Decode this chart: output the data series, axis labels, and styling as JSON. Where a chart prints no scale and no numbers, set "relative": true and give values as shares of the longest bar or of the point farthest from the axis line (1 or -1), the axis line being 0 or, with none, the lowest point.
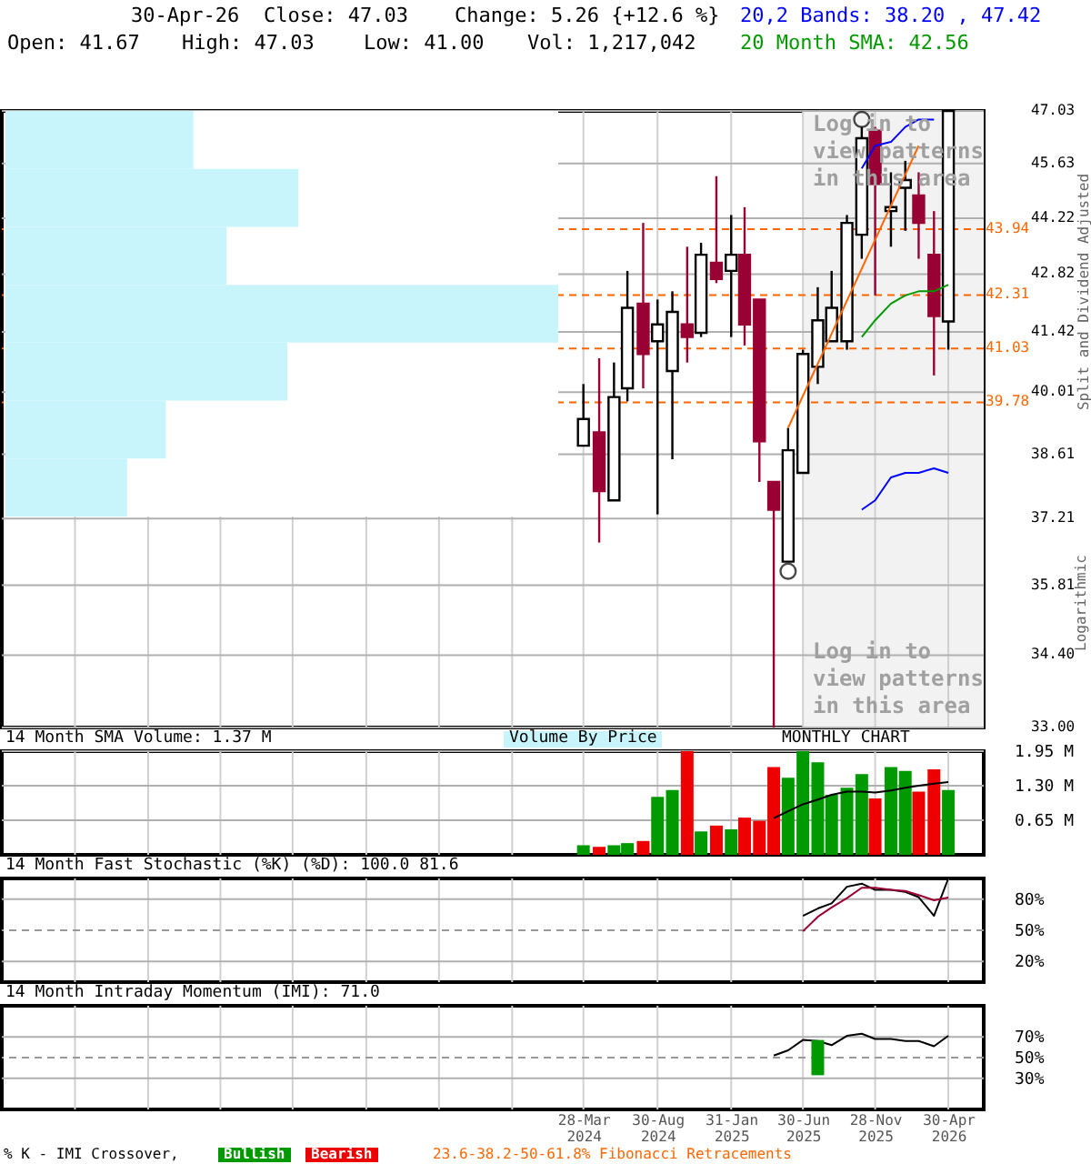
{
  "chart_data": [
    {
      "type": "candlestick",
      "annotations": [
        "30-Apr-26",
        "Close: 47.03",
        "Change: 5.26 {+12.6 %}",
        "Open: 41.67",
        "High: 47.03",
        "Low: 41.00",
        "Vol: 1,217,042",
        "20,2 Bands: 38.20 , 47.42",
        "20 Month SMA: 42.56",
        "Log in to\nview patterns\nin this area",
        "Log in to\nview patterns\nin this area",
        "Logarithmic"
      ],
      "ylabel": "Split and Dividend Adjusted",
      "x": [
        "2024-03-28",
        "2024-04-30",
        "2024-05-31",
        "2024-06-28",
        "2024-07-31",
        "2024-08-30",
        "2024-09-30",
        "2024-10-31",
        "2024-11-29",
        "2024-12-31",
        "2025-01-31",
        "2025-02-28",
        "2025-03-31",
        "2025-04-30",
        "2025-05-30",
        "2025-06-30",
        "2025-07-31",
        "2025-08-29",
        "2025-09-30",
        "2025-10-31",
        "2025-11-28",
        "2025-12-31",
        "2026-01-30",
        "2026-02-27",
        "2026-03-31",
        "2026-04-30"
      ],
      "ohlc": [
        [
          38.8,
          40.2,
          38.8,
          39.4
        ],
        [
          39.1,
          40.8,
          36.7,
          37.8
        ],
        [
          37.6,
          40.7,
          37.6,
          39.9
        ],
        [
          40.1,
          42.9,
          39.8,
          42.0
        ],
        [
          42.1,
          44.1,
          40.1,
          40.9
        ],
        [
          41.2,
          42.2,
          37.3,
          41.6
        ],
        [
          40.5,
          42.4,
          38.5,
          41.9
        ],
        [
          41.6,
          43.5,
          40.7,
          41.3
        ],
        [
          41.4,
          43.6,
          41.3,
          43.3
        ],
        [
          43.1,
          45.3,
          42.6,
          42.7
        ],
        [
          42.9,
          44.3,
          41.3,
          43.3
        ],
        [
          43.3,
          44.5,
          41.1,
          41.6
        ],
        [
          42.2,
          42.2,
          38.0,
          38.9
        ],
        [
          38.0,
          38.0,
          33.0,
          37.4
        ],
        [
          36.3,
          39.2,
          36.3,
          38.7
        ],
        [
          38.2,
          41.0,
          38.2,
          40.9
        ],
        [
          40.6,
          42.5,
          40.2,
          41.7
        ],
        [
          41.2,
          42.9,
          41.2,
          42.0
        ],
        [
          41.2,
          44.3,
          41.0,
          44.1
        ],
        [
          43.8,
          46.6,
          43.2,
          46.3
        ],
        [
          46.5,
          46.6,
          42.3,
          45.1
        ],
        [
          44.4,
          45.4,
          43.5,
          44.5
        ],
        [
          45.0,
          45.7,
          43.9,
          45.2
        ],
        [
          44.8,
          45.4,
          43.2,
          44.1
        ],
        [
          43.3,
          44.4,
          40.4,
          41.8
        ],
        [
          41.67,
          47.03,
          41.0,
          47.03
        ]
      ],
      "series": [
        {
          "type": "line",
          "color": "#0000ff",
          "x": [
            "2025-10-31",
            "2025-11-28",
            "2025-12-31",
            "2026-01-30",
            "2026-02-27",
            "2026-03-31"
          ],
          "values": [
            45.5,
            46.1,
            46.2,
            46.6,
            46.8,
            46.8
          ]
        },
        {
          "type": "line",
          "color": "#0000ff",
          "x": [
            "2025-10-31",
            "2025-11-28",
            "2025-12-31",
            "2026-01-30",
            "2026-02-27",
            "2026-03-31",
            "2026-04-30"
          ],
          "values": [
            37.4,
            37.6,
            38.1,
            38.2,
            38.2,
            38.3,
            38.2
          ]
        },
        {
          "type": "line",
          "color": "#009900",
          "x": [
            "2025-10-31",
            "2025-11-28",
            "2025-12-31",
            "2026-01-30",
            "2026-02-27",
            "2026-03-31",
            "2026-04-30"
          ],
          "values": [
            41.3,
            41.7,
            42.1,
            42.3,
            42.4,
            42.4,
            42.56
          ]
        },
        {
          "type": "line",
          "color": "#ff6600",
          "x": [
            "2025-05-30",
            "2026-02-27"
          ],
          "values": [
            39.2,
            46.1
          ]
        },
        {
          "type": "scatter",
          "color": "#000000",
          "marker": "circle",
          "x": [
            "2025-05-30",
            "2025-10-31"
          ],
          "values": [
            36.1,
            46.8
          ]
        }
      ],
      "xlim": [
        "2020-11-28",
        "2026-07-13"
      ],
      "xticks": [
        {
          "value": "2021-04-30",
          "label": null
        },
        {
          "value": "2021-09-30",
          "label": null
        },
        {
          "value": "2022-02-28",
          "label": null
        },
        {
          "value": "2022-07-29",
          "label": null
        },
        {
          "value": "2022-12-30",
          "label": null
        },
        {
          "value": "2023-05-31",
          "label": null
        },
        {
          "value": "2023-10-31",
          "label": null
        },
        {
          "value": "2024-03-28",
          "label": null
        },
        {
          "value": "2024-08-30",
          "label": null
        },
        {
          "value": "2025-01-31",
          "label": null
        },
        {
          "value": "2025-06-30",
          "label": null
        },
        {
          "value": "2025-11-28",
          "label": null
        },
        {
          "value": "2026-04-30",
          "label": null
        }
      ],
      "ylim": [
        33,
        47.03
      ],
      "yticks": [
        {
          "value": 33,
          "label": "33.00"
        },
        {
          "value": 34.4,
          "label": "34.40"
        },
        35.81,
        37.21,
        38.61,
        40.01,
        41.42,
        42.82,
        44.22,
        45.63,
        47.03
      ],
      "log": true,
      "grid": true,
      "tick_labels": "y",
      "ref_lines": [
        {
          "axis": "y",
          "value": 43.94,
          "label": "43.94",
          "color": "#ff6600",
          "line_style": "dashed"
        },
        {
          "axis": "y",
          "value": 42.31,
          "label": "42.31",
          "color": "#ff6600",
          "line_style": "dashed"
        },
        {
          "axis": "y",
          "value": 41.03,
          "label": "41.03",
          "color": "#ff6600",
          "line_style": "dashed"
        },
        {
          "axis": "y",
          "value": 39.78,
          "label": "39.78",
          "color": "#ff6600",
          "line_style": "dashed"
        }
      ],
      "bands": [
        {
          "axis": "x",
          "from": "2025-06-30",
          "to": "2026-07-13",
          "color": "#f2f2f2"
        }
      ]
    },
    {
      "type": "bar",
      "title": "Volume By Price",
      "orientation": "horizontal",
      "relative": true,
      "categories": [
        null,
        null,
        null,
        null,
        null,
        null,
        null
      ],
      "values": [
        0.34,
        0.53,
        0.4,
        1,
        0.51,
        0.29,
        0.22
      ],
      "color": "#c8f5fc"
    },
    {
      "type": "bar",
      "title": "14 Month SMA Volume: 1.37 M",
      "annotations": [
        "MONTHLY CHART"
      ],
      "x": [
        "2024-03-28",
        "2024-04-30",
        "2024-05-31",
        "2024-06-28",
        "2024-07-31",
        "2024-08-30",
        "2024-09-30",
        "2024-10-31",
        "2024-11-29",
        "2024-12-31",
        "2025-01-31",
        "2025-02-28",
        "2025-03-31",
        "2025-04-30",
        "2025-05-30",
        "2025-06-30",
        "2025-07-31",
        "2025-08-29",
        "2025-09-30",
        "2025-10-31",
        "2025-11-28",
        "2025-12-31",
        "2026-01-30",
        "2026-02-27",
        "2026-03-31",
        "2026-04-30"
      ],
      "series": [
        {
          "type": "bar",
          "values": [
            0.18,
            0.15,
            0.18,
            0.22,
            0.26,
            1.09,
            1.22,
            1.95,
            0.44,
            0.55,
            0.48,
            0.7,
            0.64,
            1.65,
            1.45,
            1.95,
            1.74,
            1.13,
            1.26,
            1.52,
            1.06,
            1.65,
            1.58,
            1.19,
            1.61,
            1.22
          ],
          "colors": [
            "#009900",
            "#ee0000",
            "#009900",
            "#009900",
            "#ee0000",
            "#009900",
            "#009900",
            "#ee0000",
            "#009900",
            "#ee0000",
            "#009900",
            "#ee0000",
            "#ee0000",
            "#ee0000",
            "#009900",
            "#009900",
            "#009900",
            "#009900",
            "#009900",
            "#009900",
            "#ee0000",
            "#009900",
            "#009900",
            "#ee0000",
            "#ee0000",
            "#009900"
          ]
        },
        {
          "type": "line",
          "color": "#000000",
          "x": [
            "2025-04-30",
            "2025-05-30",
            "2025-06-30",
            "2025-07-31",
            "2025-08-29",
            "2025-09-30",
            "2025-10-31",
            "2025-11-28",
            "2025-12-31",
            "2026-01-30",
            "2026-02-27",
            "2026-03-31",
            "2026-04-30"
          ],
          "values": [
            0.69,
            0.82,
            0.95,
            1.04,
            1.13,
            1.19,
            1.19,
            1.17,
            1.21,
            1.26,
            1.3,
            1.34,
            1.37
          ]
        }
      ],
      "xlim": [
        "2020-11-28",
        "2026-07-13"
      ],
      "xticks": [
        {
          "value": "2021-04-30",
          "label": null
        },
        {
          "value": "2021-09-30",
          "label": null
        },
        {
          "value": "2022-02-28",
          "label": null
        },
        {
          "value": "2022-07-29",
          "label": null
        },
        {
          "value": "2022-12-30",
          "label": null
        },
        {
          "value": "2023-05-31",
          "label": null
        },
        {
          "value": "2023-10-31",
          "label": null
        },
        {
          "value": "2024-03-28",
          "label": null
        },
        {
          "value": "2024-08-30",
          "label": null
        },
        {
          "value": "2025-01-31",
          "label": null
        },
        {
          "value": "2025-06-30",
          "label": null
        },
        {
          "value": "2025-11-28",
          "label": null
        },
        {
          "value": "2026-04-30",
          "label": null
        }
      ],
      "ylim": [
        0,
        1.95
      ],
      "yticks": [
        {
          "value": 0.65,
          "label": "0.65 M"
        },
        {
          "value": 1.3,
          "label": "1.30 M"
        },
        {
          "value": 1.95,
          "label": "1.95 M"
        }
      ],
      "grid": true,
      "tick_labels": "y"
    },
    {
      "type": "line",
      "title": "14 Month Fast Stochastic (%K) (%D): 100.0 81.6",
      "series": [
        {
          "color": "#000000",
          "x": [
            "2025-06-30",
            "2025-07-31",
            "2025-08-29",
            "2025-09-30",
            "2025-10-31",
            "2025-11-28",
            "2025-12-31",
            "2026-01-30",
            "2026-02-27",
            "2026-03-31",
            "2026-04-30"
          ],
          "values": [
            64,
            71,
            76,
            92,
            95,
            89,
            89,
            87,
            82,
            64,
            100
          ]
        },
        {
          "color": "#990033",
          "x": [
            "2025-06-30",
            "2025-07-31",
            "2025-08-29",
            "2025-09-30",
            "2025-10-31",
            "2025-11-28",
            "2025-12-31",
            "2026-01-30",
            "2026-02-27",
            "2026-03-31",
            "2026-04-30"
          ],
          "values": [
            49,
            63,
            72,
            81,
            91,
            91,
            89,
            88,
            84,
            79,
            81.6
          ]
        }
      ],
      "xlim": [
        "2020-11-28",
        "2026-07-13"
      ],
      "xticks": [
        {
          "value": "2021-04-30",
          "label": null
        },
        {
          "value": "2021-09-30",
          "label": null
        },
        {
          "value": "2022-02-28",
          "label": null
        },
        {
          "value": "2022-07-29",
          "label": null
        },
        {
          "value": "2022-12-30",
          "label": null
        },
        {
          "value": "2023-05-31",
          "label": null
        },
        {
          "value": "2023-10-31",
          "label": null
        },
        {
          "value": "2024-03-28",
          "label": null
        },
        {
          "value": "2024-08-30",
          "label": null
        },
        {
          "value": "2025-01-31",
          "label": null
        },
        {
          "value": "2025-06-30",
          "label": null
        },
        {
          "value": "2025-11-28",
          "label": null
        },
        {
          "value": "2026-04-30",
          "label": null
        }
      ],
      "ylim": [
        0,
        100
      ],
      "yticks": [
        {
          "value": 20,
          "label": "20%"
        },
        {
          "value": 50,
          "label": "50%"
        },
        {
          "value": 80,
          "label": "80%"
        }
      ],
      "ref_lines": [
        {
          "axis": "y",
          "value": 50,
          "color": "#999999",
          "line_style": "dashed"
        }
      ],
      "grid": true,
      "tick_labels": "y"
    },
    {
      "type": "line",
      "title": "14 Month Intraday Momentum (IMI): 71.0",
      "annotations": [
        "% K - IMI Crossover,",
        "Bullish",
        "Bearish",
        "23.6-38.2-50-61.8% Fibonacci Retracements"
      ],
      "series": [
        {
          "color": "#000000",
          "x": [
            "2025-04-30",
            "2025-05-30",
            "2025-06-30",
            "2025-07-31",
            "2025-08-29",
            "2025-09-30",
            "2025-10-31",
            "2025-11-28",
            "2025-12-31",
            "2026-01-30",
            "2026-02-27",
            "2026-03-31",
            "2026-04-30"
          ],
          "values": [
            52,
            57,
            67,
            66,
            62,
            71,
            73,
            68,
            68,
            66,
            66,
            61,
            71
          ]
        },
        {
          "type": "bar",
          "color": "#009900",
          "x": [
            "2025-07-31"
          ],
          "base": [
            33
          ],
          "values": [
            34
          ]
        }
      ],
      "xlim": [
        "2020-11-28",
        "2026-07-13"
      ],
      "xticks": [
        {
          "value": "2021-04-30",
          "label": null
        },
        {
          "value": "2021-09-30",
          "label": null
        },
        {
          "value": "2022-02-28",
          "label": null
        },
        {
          "value": "2022-07-29",
          "label": null
        },
        {
          "value": "2022-12-30",
          "label": null
        },
        {
          "value": "2023-05-31",
          "label": null
        },
        {
          "value": "2023-10-31",
          "label": null
        },
        {
          "value": "2024-03-28",
          "label": "28-Mar 2024"
        },
        {
          "value": "2024-08-30",
          "label": "30-Aug 2024"
        },
        {
          "value": "2025-01-31",
          "label": "31-Jan 2025"
        },
        {
          "value": "2025-06-30",
          "label": "30-Jun 2025"
        },
        {
          "value": "2025-11-28",
          "label": "28-Nov 2025"
        },
        {
          "value": "2026-04-30",
          "label": "30-Apr 2026"
        }
      ],
      "ylim": [
        0,
        100
      ],
      "yticks": [
        {
          "value": 30,
          "label": "30%"
        },
        {
          "value": 50,
          "label": "50%"
        },
        {
          "value": 70,
          "label": "70%"
        }
      ],
      "ref_lines": [
        {
          "axis": "y",
          "value": 50,
          "color": "#999999",
          "line_style": "dashed"
        }
      ],
      "grid": true
    }
  ]
}
